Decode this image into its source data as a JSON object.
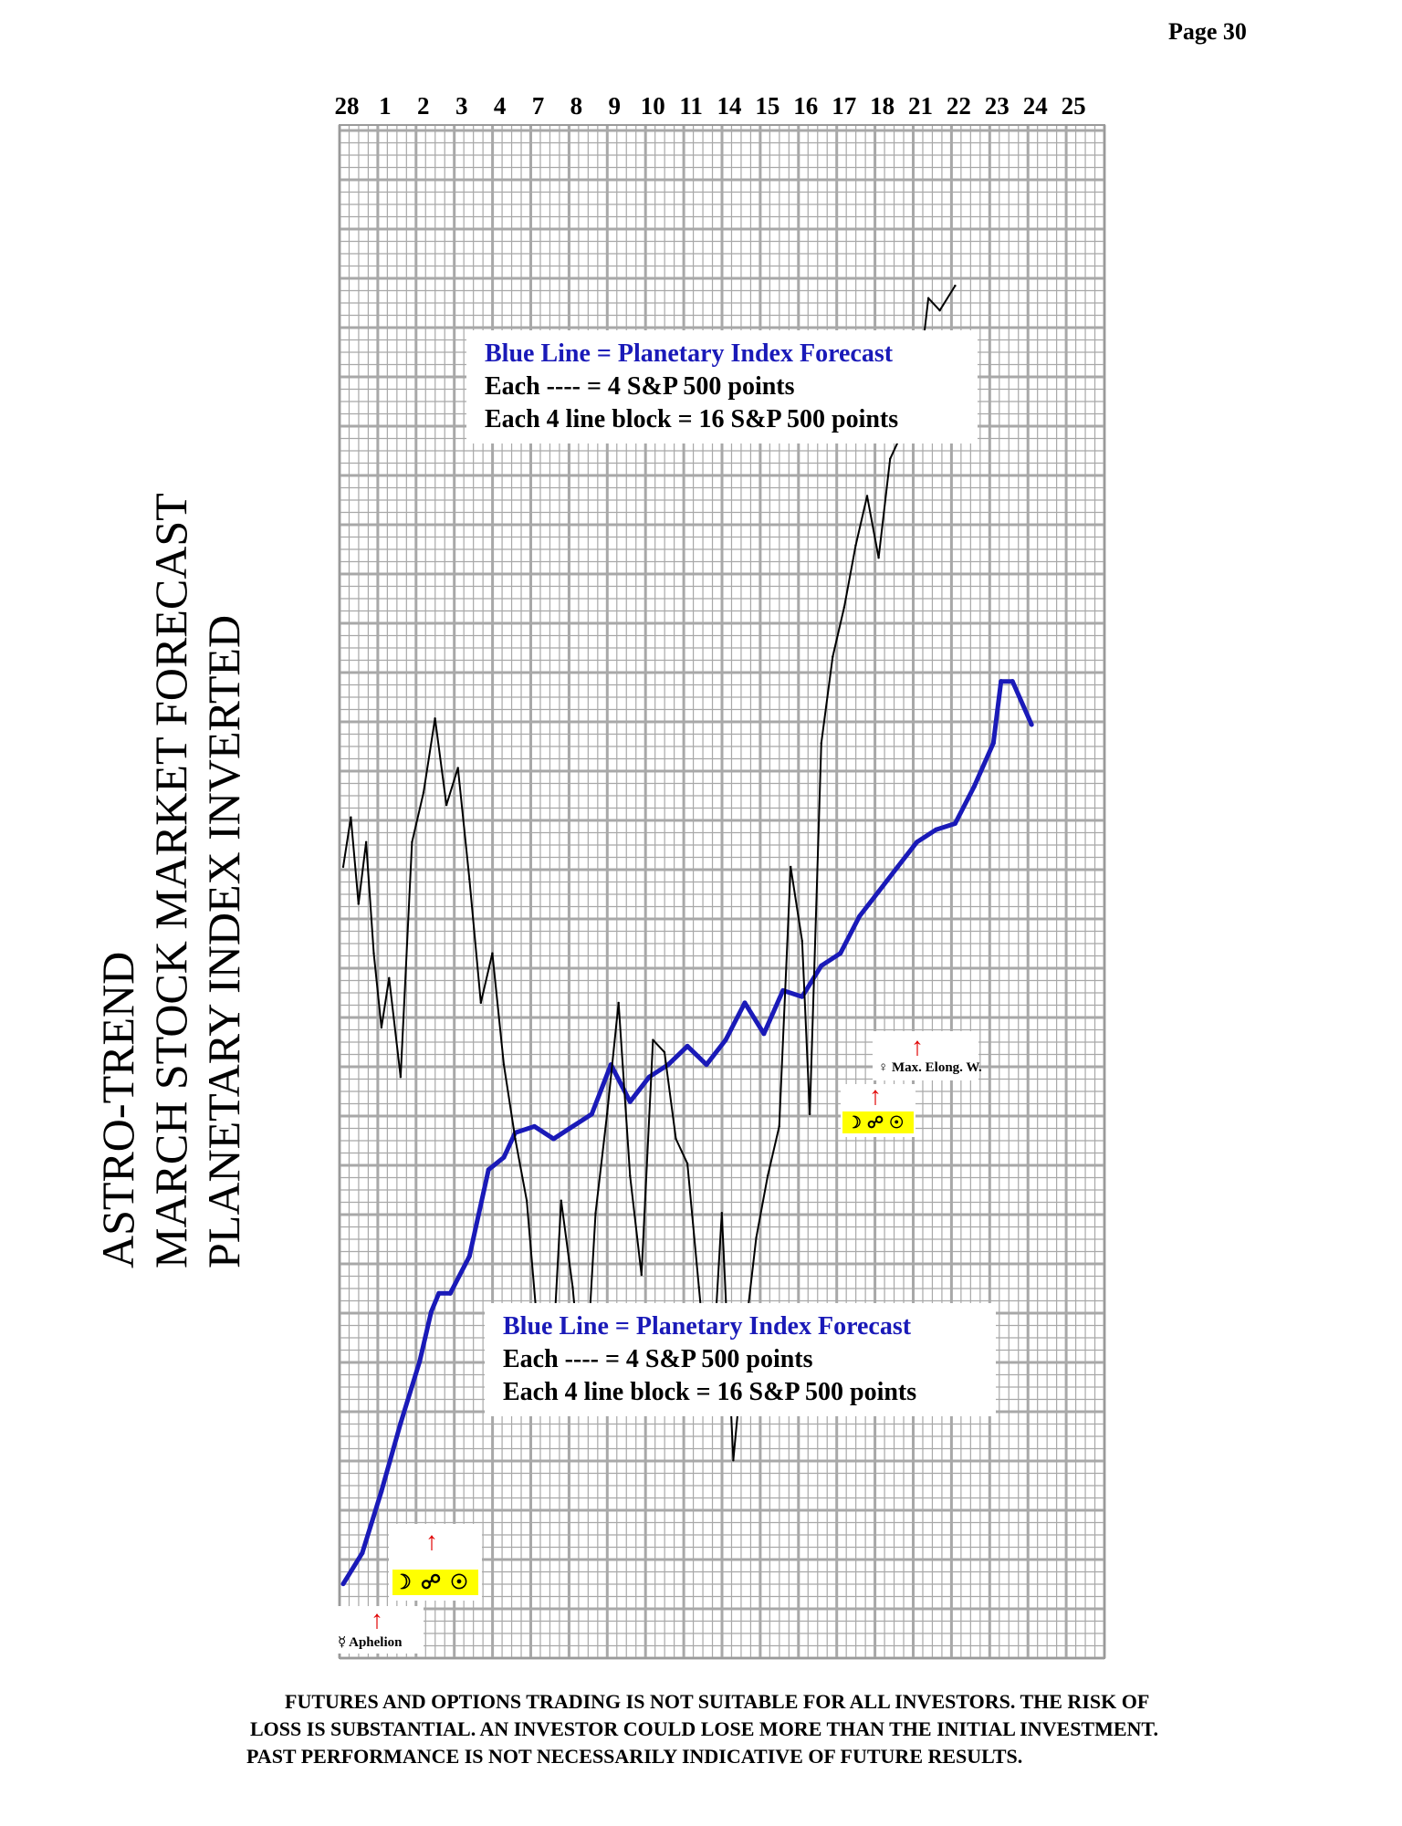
{
  "page": {
    "number_label": "Page  30"
  },
  "title": {
    "line1": "ASTRO-TREND",
    "line2": "MARCH STOCK MARKET FORECAST",
    "line3": "PLANETARY INDEX INVERTED"
  },
  "legend_top": {
    "line1": "Blue Line = Planetary Index Forecast",
    "line2": "Each ---- =   4 S&P 500 points",
    "line3": "Each 4 line block =  16  S&P 500 points"
  },
  "legend_bottom": {
    "line1": "Blue Line = Planetary Index Forecast",
    "line2": "Each ---- =   4 S&P 500 points",
    "line3": "Each 4 line block =  16  S&P 500 points"
  },
  "events": {
    "aphelion_label": "☿ Aphelion",
    "elong_label": "♀ Max. Elong. W.",
    "opposition_symbols": "☽☍☉"
  },
  "disclaimer": {
    "line1": "FUTURES AND OPTIONS TRADING IS NOT SUITABLE FOR ALL INVESTORS.  THE RISK OF",
    "line2": "LOSS IS SUBSTANTIAL.  AN INVESTOR COULD LOSE MORE THAN THE INITIAL INVESTMENT.",
    "line3": "PAST PERFORMANCE IS NOT NECESSARILY INDICATIVE OF FUTURE RESULTS."
  },
  "colors": {
    "forecast_line": "#1a1ab8",
    "price_line": "#000000",
    "grid": "#a8a8a8",
    "highlight": "#ffff00",
    "arrow": "#e00000"
  },
  "chart_data": {
    "type": "line",
    "categories": [
      "28",
      "1",
      "2",
      "3",
      "4",
      "7",
      "8",
      "9",
      "10",
      "11",
      "14",
      "15",
      "16",
      "17",
      "18",
      "21",
      "22",
      "23",
      "24",
      "25"
    ],
    "y_axis": "grid; each line = 4 S&P 500 points, each 4 line block = 16 S&P 500 points (no numeric tick labels)",
    "series": [
      {
        "name": "Blue Line = Planetary Index Forecast",
        "x": [
          0,
          0.5,
          1.0,
          1.5,
          2.0,
          2.3,
          2.5,
          2.8,
          3.3,
          3.8,
          4.2,
          4.5,
          5.0,
          5.5,
          6.0,
          6.5,
          7.0,
          7.5,
          8.0,
          8.5,
          9.0,
          9.5,
          10.0,
          10.5,
          11.0,
          11.5,
          12.0,
          12.5,
          13.0,
          13.5,
          14.0,
          14.5,
          15.0,
          15.5,
          16.0,
          16.5,
          17.0,
          17.2,
          17.5,
          18.0
        ],
        "values": [
          0,
          2.5,
          7.5,
          13,
          18,
          22,
          23.5,
          23.5,
          26.5,
          33.5,
          34.5,
          36.5,
          37,
          36,
          37,
          38,
          42,
          39,
          41,
          42,
          43.5,
          42,
          44,
          47,
          44.5,
          48,
          47.5,
          50,
          51,
          54,
          56,
          58,
          60,
          61,
          61.5,
          64.5,
          68,
          73,
          73,
          69.5
        ]
      },
      {
        "name": "",
        "x": [
          0,
          0.2,
          0.4,
          0.6,
          0.8,
          1.0,
          1.2,
          1.5,
          1.8,
          2.1,
          2.4,
          2.7,
          3.0,
          3.3,
          3.6,
          3.9,
          4.2,
          4.5,
          4.8,
          5.1,
          5.4,
          5.7,
          6.0,
          6.3,
          6.6,
          6.9,
          7.2,
          7.5,
          7.8,
          8.1,
          8.4,
          8.7,
          9.0,
          9.3,
          9.6,
          9.9,
          10.2,
          10.5,
          10.8,
          11.1,
          11.4,
          11.7,
          12.0,
          12.2,
          12.5,
          12.8,
          13.1,
          13.4,
          13.7,
          14.0,
          14.3,
          14.6,
          15.0,
          15.3,
          15.6,
          16.0
        ],
        "values": [
          58,
          62,
          55,
          60,
          51,
          45,
          49,
          41,
          60,
          64,
          70,
          63,
          66,
          57,
          47,
          51,
          42,
          36,
          31,
          20,
          14,
          31,
          24,
          14,
          30,
          38,
          47,
          33,
          25,
          44,
          43,
          36,
          34,
          24,
          14,
          30,
          10,
          20,
          28,
          33,
          37,
          58,
          52,
          38,
          68,
          75,
          79,
          84,
          88,
          83,
          91,
          93,
          96,
          104,
          103,
          105
        ]
      }
    ]
  }
}
